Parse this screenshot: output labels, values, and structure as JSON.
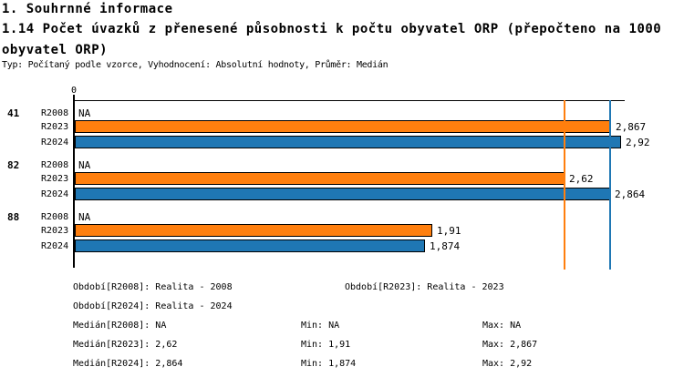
{
  "header": {
    "section_title": "1. Souhrnné informace",
    "chart_title": "1.14 Počet úvazků z přenesené působnosti k počtu obyvatel ORP (přepočteno na 1000 obyvatel ORP)",
    "meta": "Typ: Počítaný podle vzorce, Vyhodnocení: Absolutní hodnoty, Průměr: Medián"
  },
  "chart_data": {
    "type": "bar",
    "orientation": "horizontal",
    "title": "1.14 Počet úvazků z přenesené působnosti k počtu obyvatel ORP (přepočteno na 1000 obyvatel ORP)",
    "x_axis": {
      "min": 0,
      "max": 2.935,
      "origin_tick_label": "0",
      "gridlines": false
    },
    "series_colors": {
      "R2008": null,
      "R2023": "#FF7F0E",
      "R2024": "#1F77B4"
    },
    "groups": [
      {
        "label": "41",
        "bars": [
          {
            "period": "R2008",
            "value": null,
            "display": "NA"
          },
          {
            "period": "R2023",
            "value": 2.867,
            "display": "2,867"
          },
          {
            "period": "R2024",
            "value": 2.92,
            "display": "2,92"
          }
        ]
      },
      {
        "label": "82",
        "bars": [
          {
            "period": "R2008",
            "value": null,
            "display": "NA"
          },
          {
            "period": "R2023",
            "value": 2.62,
            "display": "2,62"
          },
          {
            "period": "R2024",
            "value": 2.864,
            "display": "2,864"
          }
        ]
      },
      {
        "label": "88",
        "bars": [
          {
            "period": "R2008",
            "value": null,
            "display": "NA"
          },
          {
            "period": "R2023",
            "value": 1.91,
            "display": "1,91"
          },
          {
            "period": "R2024",
            "value": 1.874,
            "display": "1,874"
          }
        ]
      }
    ],
    "median_lines": [
      {
        "period": "R2023",
        "value": 2.62,
        "color": "#FF7F0E"
      },
      {
        "period": "R2024",
        "value": 2.864,
        "color": "#1F77B4"
      }
    ]
  },
  "legend": {
    "obdobi_r2008": "Období[R2008]: Realita - 2008",
    "obdobi_r2023": "Období[R2023]: Realita - 2023",
    "obdobi_r2024": "Období[R2024]: Realita - 2024",
    "median_r2008": "Medián[R2008]: NA",
    "min_r2008": "Min: NA",
    "max_r2008": "Max: NA",
    "median_r2023": "Medián[R2023]: 2,62",
    "min_r2023": "Min: 1,91",
    "max_r2023": "Max: 2,867",
    "median_r2024": "Medián[R2024]: 2,864",
    "min_r2024": "Min: 1,874",
    "max_r2024": "Max: 2,92"
  }
}
